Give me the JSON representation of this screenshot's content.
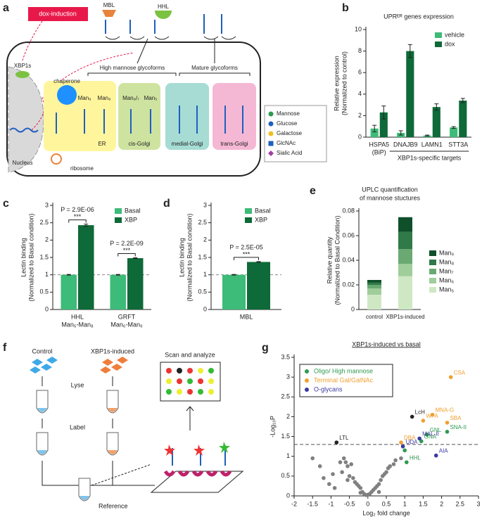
{
  "diagram_a": {
    "panel_label": "a",
    "dox": "dox-induction",
    "xbp1s": "XBP1s",
    "nucleus": "Nucleus",
    "mbl": "MBL",
    "hhl": "HHL",
    "high_mannose": "High mannose glycoforms",
    "mature": "Mature glycoforms",
    "chaperone": "chaperone",
    "ribosome": "ribosome",
    "compartments": [
      "ER",
      "cis-Golgi",
      "medial-Golgi",
      "trans-Golgi"
    ],
    "glycans": [
      "Man₉",
      "Man₈",
      "Man₈/₇",
      "Man₅"
    ],
    "legend": [
      {
        "name": "Mannose",
        "color": "#2e9a4f"
      },
      {
        "name": "Glucose",
        "color": "#1f5fbf"
      },
      {
        "name": "Galactose",
        "color": "#f0c020"
      },
      {
        "name": "GlcNAc",
        "color": "#1f5fbf"
      },
      {
        "name": "Sialic Acid",
        "color": "#a040a0"
      }
    ]
  },
  "diagram_f": {
    "panel_label": "f",
    "control": "Control",
    "xbp1s": "XBP1s-induced",
    "lyse": "Lyse",
    "label": "Label",
    "reference": "Reference",
    "scan": "Scan and analyze"
  },
  "chart_data": [
    {
      "panel_label": "b",
      "type": "bar",
      "title": "UPRᴱᴿ genes expression",
      "ylabel": [
        "Relative expression",
        "(Normalized to control)"
      ],
      "categories": [
        "HSPA5",
        "DNAJB9",
        "LAMN1",
        "STT3A"
      ],
      "category_sublabels": [
        "(BiP)",
        null,
        null,
        null
      ],
      "group_label": "XBP1s-specific targets",
      "series": [
        {
          "name": "vehicle",
          "color": "#3dbb78",
          "values": [
            0.8,
            0.4,
            0.15,
            0.9
          ],
          "errors": [
            0.3,
            0.2,
            0.05,
            0.08
          ]
        },
        {
          "name": "dox",
          "color": "#0e6a38",
          "values": [
            2.3,
            8.0,
            2.8,
            3.4
          ],
          "errors": [
            0.6,
            0.6,
            0.3,
            0.2
          ]
        }
      ],
      "ylim": [
        0,
        10
      ],
      "yticks": [
        0,
        2,
        4,
        6,
        8,
        10
      ],
      "legend": "upper right"
    },
    {
      "panel_label": "c",
      "type": "bar",
      "ylabel": [
        "Lectin binding",
        "(Normalized to Basal condition)"
      ],
      "categories": [
        "HHL",
        "GRFT"
      ],
      "category_sublabels": [
        "Man₅-Man₈",
        "Man₆-Man₉"
      ],
      "series": [
        {
          "name": "Basal",
          "color": "#3dbb78",
          "values": [
            1,
            1
          ],
          "errors": [
            0.01,
            0.01
          ]
        },
        {
          "name": "XBP",
          "color": "#0e6a38",
          "values": [
            2.43,
            1.48
          ],
          "errors": [
            0.03,
            0.01
          ]
        }
      ],
      "significance": [
        {
          "stars": "***",
          "p": "P = 2.9E-06"
        },
        {
          "stars": "***",
          "p": "P = 2.2E-09"
        }
      ],
      "refline": 1,
      "ylim": [
        0,
        3
      ],
      "yticks": [
        0,
        0.5,
        1,
        1.5,
        2,
        2.5,
        3
      ],
      "legend": "upper right"
    },
    {
      "panel_label": "d",
      "type": "bar",
      "ylabel": [
        "Lectin binding",
        "(Normalized to Basal condition)"
      ],
      "categories": [
        "MBL"
      ],
      "series": [
        {
          "name": "Basal",
          "color": "#3dbb78",
          "values": [
            1
          ],
          "errors": [
            0.01
          ]
        },
        {
          "name": "XBP",
          "color": "#0e6a38",
          "values": [
            1.37
          ],
          "errors": [
            0.01
          ]
        }
      ],
      "significance": [
        {
          "stars": "***",
          "p": "P = 2.5E-05"
        }
      ],
      "refline": 1,
      "ylim": [
        0,
        3
      ],
      "yticks": [
        0,
        0.5,
        1,
        1.5,
        2,
        2.5,
        3
      ],
      "legend": "upper right"
    },
    {
      "panel_label": "e",
      "type": "bar",
      "stacked": true,
      "title": [
        "UPLC quantification",
        "of mannose stuctures"
      ],
      "ylabel": [
        "Relative quantity",
        "(Normalized to Basal Condition)"
      ],
      "categories": [
        "control",
        "XBP1s-induced"
      ],
      "series": [
        {
          "name": "Man₅",
          "color": "#cfe8c4",
          "values": [
            0.012,
            0.027
          ]
        },
        {
          "name": "Man₆",
          "color": "#9fce9a",
          "values": [
            0.005,
            0.01
          ]
        },
        {
          "name": "Man₇",
          "color": "#6aaa72",
          "values": [
            0.003,
            0.012
          ]
        },
        {
          "name": "Man₈",
          "color": "#2f7a48",
          "values": [
            0.002,
            0.014
          ]
        },
        {
          "name": "Man₉",
          "color": "#0f4f2a",
          "values": [
            0.002,
            0.012
          ]
        }
      ],
      "ylim": [
        0,
        0.08
      ],
      "yticks": [
        0,
        0.02,
        0.04,
        0.06,
        0.08
      ],
      "legend": "right"
    },
    {
      "panel_label": "g",
      "type": "scatter",
      "title": "XBP1s-induced vs basal",
      "xlabel": "Log₂ fold change",
      "ylabel": "-Log₁₀P",
      "series": [
        {
          "name": "Oligo/ High mannose",
          "color": "#2e9a4f",
          "x": [
            1.6,
            2.15,
            1.45,
            1.0,
            1.05
          ],
          "y": [
            1.55,
            1.62,
            1.38,
            1.15,
            0.85
          ],
          "labels": [
            "GNL",
            "SNA-II",
            "GNA",
            null,
            "HHL"
          ]
        },
        {
          "name": "Terminal Gal/GalNAc",
          "color": "#f0a030",
          "x": [
            2.25,
            1.75,
            1.5,
            2.15,
            0.9
          ],
          "y": [
            3.0,
            2.05,
            1.9,
            1.85,
            1.35
          ],
          "labels": [
            "CSA",
            "MNA-G",
            "WFA",
            "SBA",
            "DBA"
          ]
        },
        {
          "name": "O-glycans",
          "color": "#3a3aa0",
          "x": [
            1.4,
            0.95,
            1.85
          ],
          "y": [
            1.45,
            1.25,
            1.02
          ],
          "labels": [
            "MAL-II",
            "UDA",
            "AIA"
          ]
        }
      ],
      "other_points": {
        "color": "#222222",
        "x": [
          1.2,
          -0.85
        ],
        "y": [
          2.0,
          1.35
        ],
        "labels": [
          "LcH",
          "LTL"
        ]
      },
      "background_points": {
        "color": "#808080",
        "x": [
          -1.5,
          -1.3,
          -1.2,
          -1.05,
          -0.95,
          -0.9,
          -0.75,
          -0.7,
          -0.6,
          -0.55,
          -0.5,
          -0.45,
          -0.4,
          -0.35,
          -0.3,
          -0.25,
          -0.2,
          -0.15,
          -0.1,
          -0.05,
          0,
          0.05,
          0.1,
          0.15,
          0.2,
          0.25,
          0.3,
          0.35,
          0.4,
          0.45,
          0.5,
          0.55,
          0.6,
          0.7,
          0.75,
          -0.65,
          -0.55,
          0.9,
          0.3,
          -0.2
        ],
        "y": [
          0.95,
          0.75,
          0.45,
          0.3,
          0.55,
          0.2,
          0.85,
          0.6,
          0.85,
          0.75,
          0.5,
          0.8,
          0.45,
          0.35,
          0.3,
          0.25,
          0.2,
          0.1,
          0.05,
          0.02,
          0.03,
          0.05,
          0.1,
          0.15,
          0.2,
          0.25,
          0.3,
          0.4,
          0.5,
          0.55,
          0.6,
          0.7,
          0.75,
          0.8,
          0.9,
          0.95,
          0.4,
          0.95,
          0.1,
          0.08
        ]
      },
      "threshold": 1.3,
      "xlim": [
        -2,
        3
      ],
      "ylim": [
        0,
        3.5
      ],
      "xticks": [
        -2,
        -1.5,
        -1,
        -0.5,
        0,
        0.5,
        1,
        1.5,
        2,
        2.5,
        3
      ],
      "yticks": [
        0,
        0.5,
        1,
        1.5,
        2,
        2.5,
        3,
        3.5
      ],
      "legend": "upper left"
    }
  ]
}
